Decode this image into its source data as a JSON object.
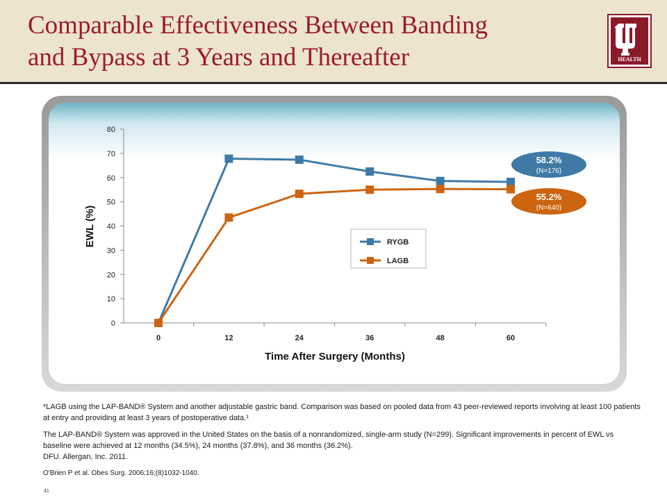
{
  "header": {
    "title_line1": "Comparable Effectiveness Between Banding",
    "title_line2": "and Bypass at 3 Years and Thereafter",
    "logo_text": "HEALTH"
  },
  "chart_data": {
    "type": "line",
    "ylabel": "EWL (%)",
    "xlabel": "Time After Surgery (Months)",
    "x": [
      0,
      12,
      24,
      36,
      48,
      60
    ],
    "xticks": [
      "0",
      "12",
      "24",
      "36",
      "48",
      "60"
    ],
    "yticks": [
      0,
      10,
      20,
      30,
      40,
      50,
      60,
      70,
      80
    ],
    "ylim": [
      0,
      80
    ],
    "grid": false,
    "legend_position": "center-right",
    "series": [
      {
        "name": "RYGB",
        "color": "#3e7aa5",
        "values": [
          0,
          67.8,
          67.4,
          62.5,
          58.6,
          58.2
        ]
      },
      {
        "name": "LAGB",
        "color": "#cc6410",
        "values": [
          0,
          43.5,
          53.3,
          55.0,
          55.3,
          55.2
        ]
      }
    ],
    "annotations": [
      {
        "value": "58.2%",
        "sub": "(N=176)",
        "color": "#3e7aa5",
        "series": "RYGB"
      },
      {
        "value": "55.2%",
        "sub": "(N=640)",
        "color": "#cc6410",
        "series": "LAGB"
      }
    ]
  },
  "notes": {
    "footnote1": "*LAGB using the LAP-BAND® System and another adjustable gastric band. Comparison was based on pooled data from 43 peer-reviewed reports involving at least 100 patients at entry and providing at least 3 years of postoperative data.¹",
    "footnote2": "The LAP-BAND® System was approved in the United States on the basis of a nonrandomized, single-arm study (N=299). Significant improvements in percent of EWL vs baseline were achieved at 12 months (34.5%), 24 months (37.8%), and 36 months (36.2%).",
    "footnote3": "DFU. Allergan, Inc. 2011.",
    "citation": "O'Brien P et al. Obes Surg. 2006;16;(8)1032-1040."
  },
  "page_number": "41"
}
